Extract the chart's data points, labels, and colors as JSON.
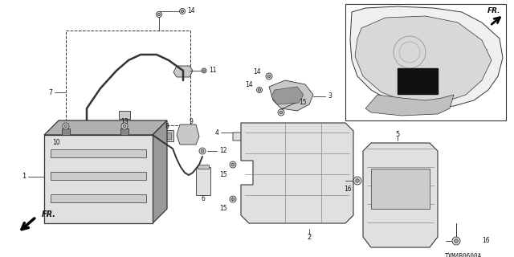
{
  "background_color": "#ffffff",
  "diagram_code": "TXM4B0600A",
  "line_color": "#333333",
  "text_color": "#111111",
  "gray_fill": "#c8c8c8",
  "light_gray": "#e0e0e0",
  "dark_gray": "#888888"
}
